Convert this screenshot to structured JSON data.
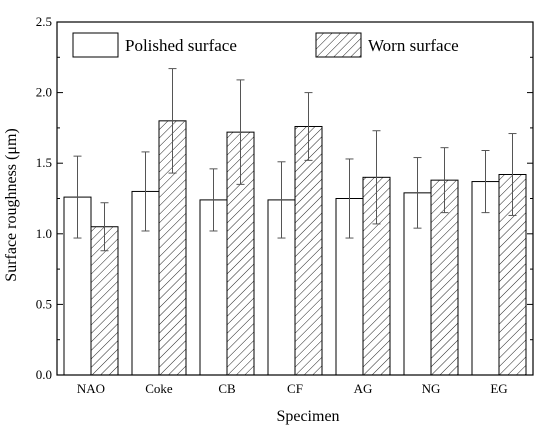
{
  "chart_data": {
    "type": "bar",
    "categories": [
      "NAO",
      "Coke",
      "CB",
      "CF",
      "AG",
      "NG",
      "EG"
    ],
    "series": [
      {
        "name": "Polished surface",
        "pattern": "solid-white",
        "values": [
          1.26,
          1.3,
          1.24,
          1.24,
          1.25,
          1.29,
          1.37
        ],
        "errors": [
          0.29,
          0.28,
          0.22,
          0.27,
          0.28,
          0.25,
          0.22
        ]
      },
      {
        "name": "Worn surface",
        "pattern": "diagonal-hatch",
        "values": [
          1.05,
          1.8,
          1.72,
          1.76,
          1.4,
          1.38,
          1.42
        ],
        "errors": [
          0.17,
          0.37,
          0.37,
          0.24,
          0.33,
          0.23,
          0.29
        ]
      }
    ],
    "xlabel": "Specimen",
    "ylabel": "Surface roughness (μm)",
    "ylim": [
      0.0,
      2.5
    ],
    "yticks": [
      "0.0",
      "0.5",
      "1.0",
      "1.5",
      "2.0",
      "2.5"
    ],
    "grid": false,
    "legend_position": "top"
  }
}
